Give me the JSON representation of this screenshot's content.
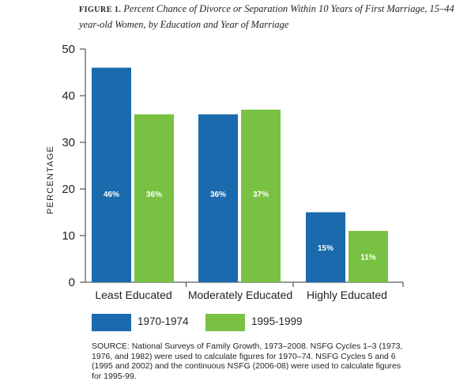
{
  "figure_label": "FIGURE 1.",
  "title": "Percent Chance of Divorce or Separation Within 10 Years of First Marriage, 15–44 year-old Women, by Education and Year of Marriage",
  "source": "SOURCE: National Surveys of Family Growth, 1973–2008. NSFG Cycles 1–3 (1973, 1976, and 1982) were used to calculate figures for 1970–74. NSFG Cycles 5 and 6 (1995 and 2002) and the continuous NSFG (2006-08) were used to calculate figures for 1995-99.",
  "colors": {
    "series1": "#1a6aad",
    "series2": "#78c142",
    "axis": "#333333",
    "data_label": "#ffffff"
  },
  "chart_data": {
    "type": "bar",
    "categories": [
      "Least Educated",
      "Moderately Educated",
      "Highly Educated"
    ],
    "series": [
      {
        "name": "1970-1974",
        "values": [
          46,
          36,
          15
        ],
        "labels": [
          "46%",
          "36%",
          "15%"
        ]
      },
      {
        "name": "1995-1999",
        "values": [
          36,
          37,
          11
        ],
        "labels": [
          "36%",
          "37%",
          "11%"
        ]
      }
    ],
    "ylabel": "PERCENTAGE",
    "xlabel": "",
    "ylim": [
      0,
      50
    ],
    "yticks": [
      0,
      10,
      20,
      30,
      40,
      50
    ],
    "grid": false,
    "legend_position": "bottom"
  }
}
